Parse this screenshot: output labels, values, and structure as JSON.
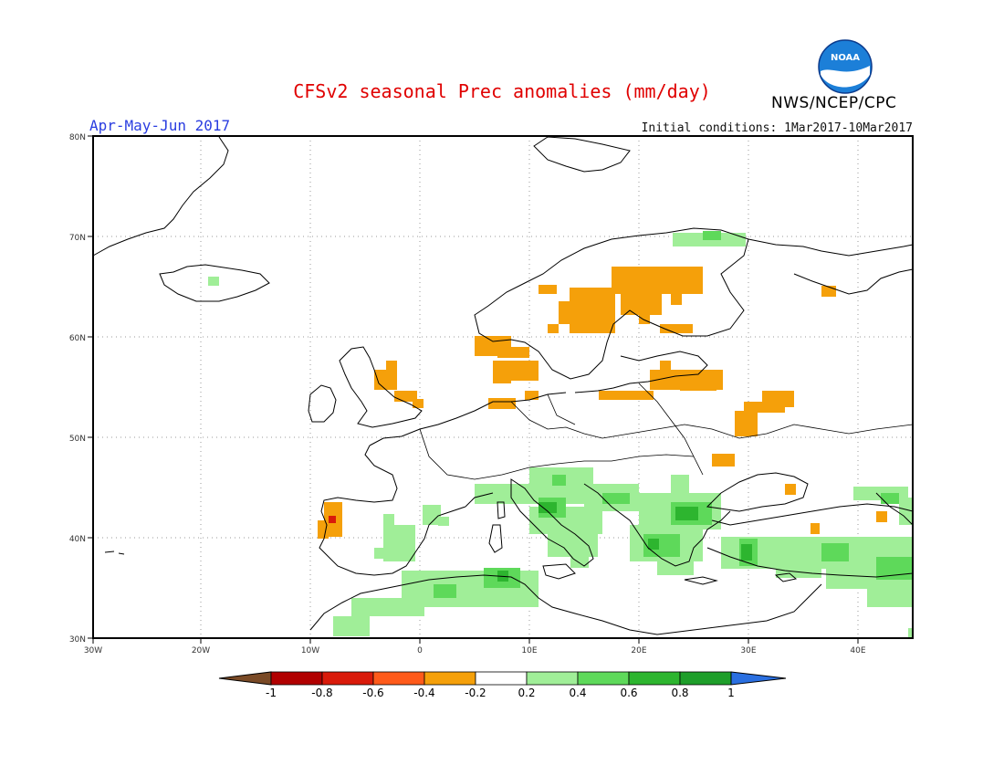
{
  "header": {
    "title": "CFSv2 seasonal Prec anomalies (mm/day)",
    "period": "Apr-May-Jun 2017",
    "initial_conditions": "Initial conditions: 1Mar2017-10Mar2017",
    "agency": "NWS/NCEP/CPC",
    "logo_text": "NOAA"
  },
  "map": {
    "lat_labels": [
      "80N",
      "70N",
      "60N",
      "50N",
      "40N",
      "30N"
    ],
    "lon_labels": [
      "30W",
      "20W",
      "10W",
      "0",
      "10E",
      "20E",
      "30E",
      "40E"
    ]
  },
  "colorbar": {
    "tick_labels": [
      "-1",
      "-0.8",
      "-0.6",
      "-0.4",
      "-0.2",
      "0.2",
      "0.4",
      "0.6",
      "0.8",
      "1"
    ],
    "colors": [
      "#7a4a26",
      "#b10000",
      "#d91a0a",
      "#ff5a1a",
      "#f5a00a",
      "#ffffff",
      "#a0ee98",
      "#5ed95a",
      "#2db52f",
      "#1e9e2a",
      "#2a6fe0"
    ]
  },
  "colors": {
    "title": "#e00000",
    "period": "#2a3de0",
    "land_outline": "#000000"
  }
}
